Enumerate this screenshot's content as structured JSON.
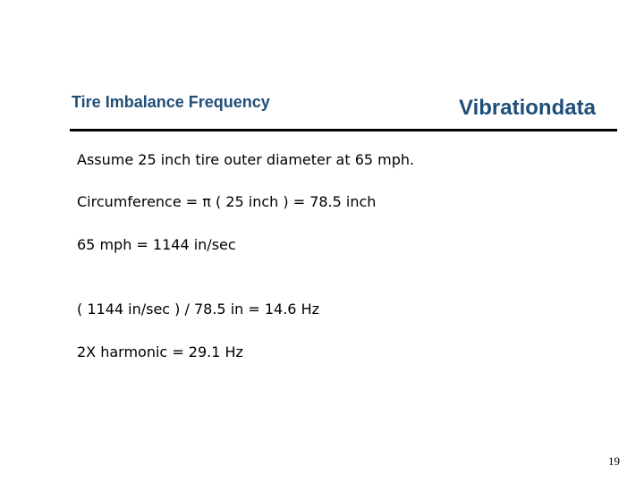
{
  "header": {
    "title": "Tire Imbalance Frequency",
    "brand": "Vibrationdata"
  },
  "body": {
    "lines": [
      "Assume 25 inch tire outer diameter at 65 mph.",
      "Circumference = π ( 25 inch ) = 78.5 inch",
      "65 mph = 1144 in/sec",
      "( 1144 in/sec ) / 78.5 in = 14.6 Hz",
      "2X harmonic = 29.1 Hz"
    ]
  },
  "footer": {
    "page_number": "19"
  }
}
